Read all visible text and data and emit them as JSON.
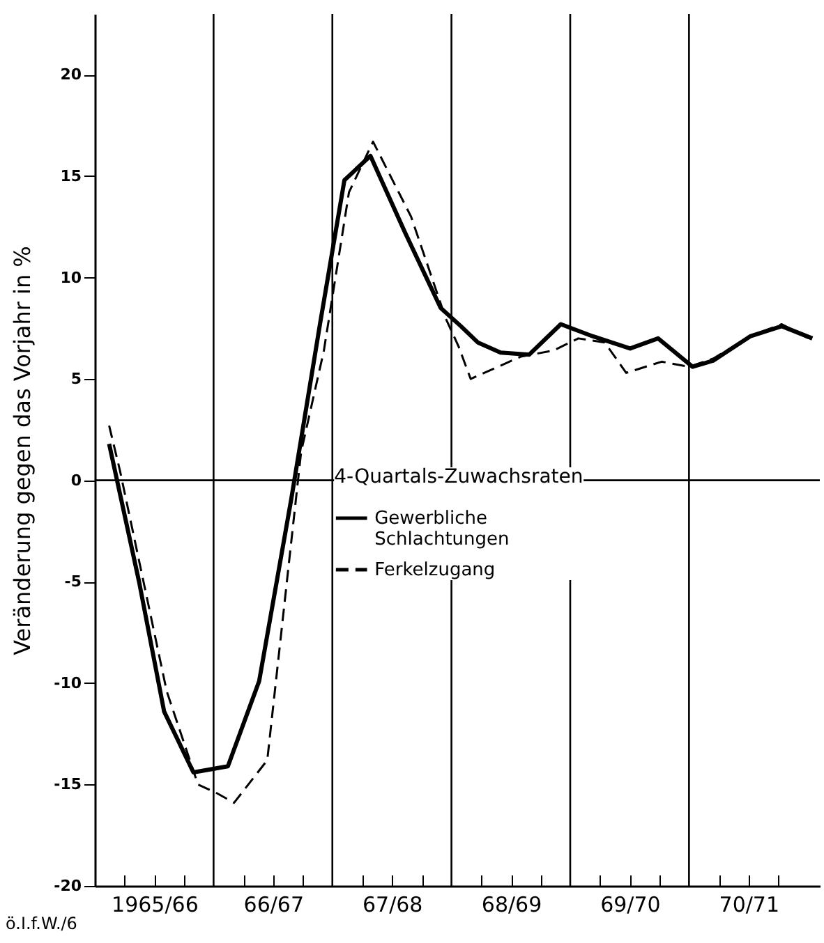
{
  "chart_data": {
    "type": "line",
    "ylabel": "Veränderung gegen das Vorjahr in %",
    "legend_title": "4-Quartals-Zuwachsraten",
    "legend": "center",
    "annotations": [
      "ö.I.f.W./6"
    ],
    "xlim": [
      "1965-07-01",
      "1971-08-07"
    ],
    "ylim": [
      -20,
      23
    ],
    "xticks": [
      {
        "value": "1965-10-01",
        "label": null
      },
      {
        "value": "1965-12-31",
        "label": "1965/66"
      },
      {
        "value": "1966-04-01",
        "label": null
      },
      {
        "value": "1966-10-01",
        "label": null
      },
      {
        "value": "1966-12-31",
        "label": "66/67"
      },
      {
        "value": "1967-04-01",
        "label": null
      },
      {
        "value": "1967-10-01",
        "label": null
      },
      {
        "value": "1967-12-31",
        "label": "67/68"
      },
      {
        "value": "1968-04-01",
        "label": null
      },
      {
        "value": "1968-10-01",
        "label": null
      },
      {
        "value": "1968-12-31",
        "label": "68/69"
      },
      {
        "value": "1969-04-01",
        "label": null
      },
      {
        "value": "1969-10-01",
        "label": null
      },
      {
        "value": "1969-12-31",
        "label": "69/70"
      },
      {
        "value": "1970-04-01",
        "label": null
      },
      {
        "value": "1970-10-01",
        "label": null
      },
      {
        "value": "1970-12-31",
        "label": "70/71"
      },
      {
        "value": "1971-04-01",
        "label": null
      }
    ],
    "yticks": [
      -20,
      -15,
      -10,
      -5,
      0,
      5,
      10,
      15,
      20
    ],
    "ref_lines": [
      {
        "axis": "y",
        "value": 0
      },
      {
        "axis": "x",
        "value": "1966-07-01"
      },
      {
        "axis": "x",
        "value": "1967-07-01"
      },
      {
        "axis": "x",
        "value": "1968-07-01"
      },
      {
        "axis": "x",
        "value": "1969-07-01"
      },
      {
        "axis": "x",
        "value": "1970-07-01"
      }
    ],
    "series": [
      {
        "name": "Gewerbliche Schlachtungen",
        "color": "#000000",
        "line_style": "solid",
        "x": [
          "1965-08-14",
          "1965-11-14",
          "1966-01-30",
          "1966-04-30",
          "1966-08-14",
          "1966-11-18",
          "1967-02-25",
          "1967-05-25",
          "1967-08-07",
          "1967-10-26",
          "1968-02-10",
          "1968-05-29",
          "1968-07-30",
          "1968-09-20",
          "1968-11-29",
          "1969-02-25",
          "1969-06-02",
          "1969-09-09",
          "1970-01-01",
          "1970-03-28",
          "1970-07-12",
          "1970-09-13",
          "1971-01-05",
          "1971-04-12",
          "1971-07-15"
        ],
        "values": [
          1.8,
          -5,
          -11.4,
          -14.4,
          -14.1,
          -9.9,
          -0.9,
          7.8,
          14.8,
          16,
          12.2,
          8.5,
          7.6,
          6.8,
          6.3,
          6.2,
          7.7,
          7.1,
          6.5,
          7,
          5.6,
          5.9,
          7.1,
          7.6,
          7
        ]
      },
      {
        "name": "Ferkelzugang",
        "color": "#000000",
        "line_style": "dashed",
        "x": [
          "1965-08-14",
          "1965-09-16",
          "1966-02-07",
          "1966-05-14",
          "1966-07-08",
          "1966-09-02",
          "1966-12-13",
          "1967-03-27",
          "1967-06-05",
          "1967-08-21",
          "1967-11-03",
          "1968-02-28",
          "1968-06-13",
          "1968-07-23",
          "1968-08-29",
          "1969-01-30",
          "1969-05-10",
          "1969-07-26",
          "1969-10-15",
          "1969-12-20",
          "1970-04-08",
          "1970-07-01",
          "1970-09-13",
          "1971-01-05",
          "1971-04-12",
          "1971-07-15"
        ],
        "values": [
          2.7,
          0.5,
          -10.4,
          -15,
          -15.4,
          -15.9,
          -13.8,
          1.4,
          6.4,
          14.2,
          16.7,
          13,
          8,
          6.6,
          5,
          6.1,
          6.4,
          7,
          6.8,
          5.3,
          5.85,
          5.6,
          6,
          7.1,
          7.7,
          6.9
        ]
      }
    ]
  }
}
